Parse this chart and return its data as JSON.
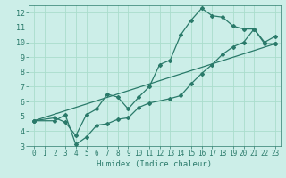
{
  "title": "",
  "xlabel": "Humidex (Indice chaleur)",
  "bg_color": "#cceee8",
  "grid_color": "#aaddcc",
  "line_color": "#2a7a6a",
  "xlim": [
    -0.5,
    23.5
  ],
  "ylim": [
    3,
    12.5
  ],
  "xticks": [
    0,
    1,
    2,
    3,
    4,
    5,
    6,
    7,
    8,
    9,
    10,
    11,
    12,
    13,
    14,
    15,
    16,
    17,
    18,
    19,
    20,
    21,
    22,
    23
  ],
  "yticks": [
    3,
    4,
    5,
    6,
    7,
    8,
    9,
    10,
    11,
    12
  ],
  "series": [
    {
      "x": [
        0,
        2,
        3,
        4,
        5,
        6,
        7,
        8,
        9,
        10,
        11,
        12,
        13,
        14,
        15,
        16,
        17,
        18,
        19,
        20,
        21,
        22,
        23
      ],
      "y": [
        4.7,
        4.9,
        4.6,
        3.7,
        5.1,
        5.5,
        6.5,
        6.3,
        5.5,
        6.3,
        7.0,
        8.5,
        8.8,
        10.5,
        11.5,
        12.3,
        11.8,
        11.7,
        11.1,
        10.9,
        10.9,
        10.0,
        10.4
      ]
    },
    {
      "x": [
        0,
        2,
        3,
        4,
        5,
        6,
        7,
        8,
        9,
        10,
        11,
        13,
        14,
        15,
        16,
        17,
        18,
        19,
        20,
        21,
        22,
        23
      ],
      "y": [
        4.7,
        4.7,
        5.1,
        3.1,
        3.6,
        4.4,
        4.5,
        4.8,
        4.9,
        5.6,
        5.9,
        6.2,
        6.4,
        7.2,
        7.9,
        8.5,
        9.2,
        9.7,
        10.0,
        10.9,
        9.9,
        9.9
      ]
    },
    {
      "x": [
        0,
        23
      ],
      "y": [
        4.7,
        9.9
      ]
    }
  ],
  "tick_fontsize": 5.5,
  "xlabel_fontsize": 6.5
}
